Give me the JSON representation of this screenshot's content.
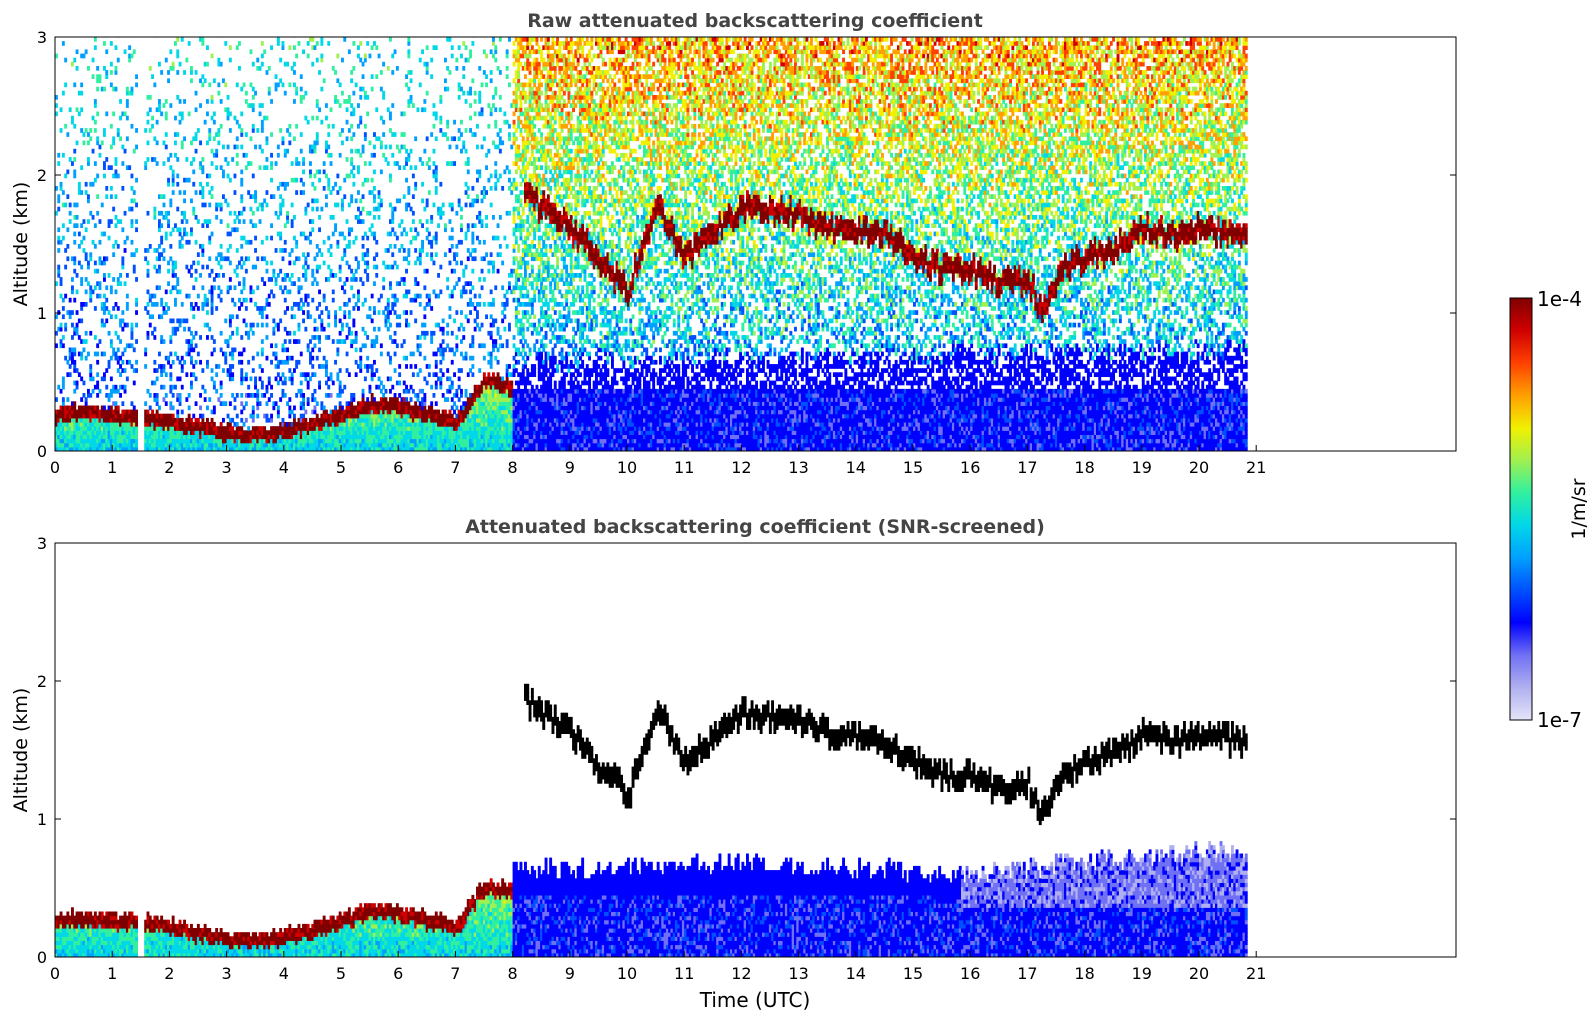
{
  "chart_data": {
    "type": "heatmap",
    "shared_x_label": "Time (UTC)",
    "x_ticks": [
      0,
      1,
      2,
      3,
      4,
      5,
      6,
      7,
      8,
      9,
      10,
      11,
      12,
      13,
      14,
      15,
      16,
      17,
      18,
      19,
      20,
      21
    ],
    "x_range": [
      0,
      24
    ],
    "data_x_extent": [
      0,
      20.8
    ],
    "y_range": [
      0,
      3
    ],
    "y_ticks": [
      0,
      1,
      2,
      3
    ],
    "colorbar": {
      "label": "1/m/sr",
      "min_label": "1e-7",
      "max_label": "1e-4",
      "scale": "log",
      "colors": [
        "#e4e4f8",
        "#b0b0f0",
        "#7070f4",
        "#0000ff",
        "#0050ff",
        "#00a0ff",
        "#00d8e8",
        "#30f0a0",
        "#a0f050",
        "#f0f000",
        "#ffa000",
        "#ff4000",
        "#d00000",
        "#800000"
      ]
    },
    "panels": [
      {
        "title": "Raw attenuated backscattering coefficient",
        "ylabel": "Altitude (km)",
        "xlabel": "",
        "screened": false,
        "features": {
          "data_gap": [
            1.42,
            1.55
          ],
          "boundary_layer_top_km": [
            [
              0,
              0.25
            ],
            [
              0.5,
              0.26
            ],
            [
              1.0,
              0.24
            ],
            [
              1.4,
              0.24
            ],
            [
              1.6,
              0.23
            ],
            [
              2.0,
              0.2
            ],
            [
              2.5,
              0.16
            ],
            [
              3.0,
              0.12
            ],
            [
              3.5,
              0.1
            ],
            [
              4.0,
              0.13
            ],
            [
              4.5,
              0.18
            ],
            [
              5.0,
              0.25
            ],
            [
              5.5,
              0.32
            ],
            [
              6.0,
              0.31
            ],
            [
              6.5,
              0.25
            ],
            [
              7.0,
              0.2
            ],
            [
              7.5,
              0.5
            ],
            [
              8.0,
              0.45
            ]
          ],
          "cloud_layer_km": [
            [
              8.2,
              1.85
            ],
            [
              9.0,
              1.6
            ],
            [
              10.0,
              1.15
            ],
            [
              10.5,
              1.8
            ],
            [
              11.0,
              1.4
            ],
            [
              12.0,
              1.75
            ],
            [
              13.0,
              1.7
            ],
            [
              13.5,
              1.6
            ],
            [
              14.0,
              1.6
            ],
            [
              14.5,
              1.55
            ],
            [
              15.0,
              1.4
            ],
            [
              15.5,
              1.3
            ],
            [
              16.0,
              1.3
            ],
            [
              16.5,
              1.2
            ],
            [
              17.0,
              1.25
            ],
            [
              17.2,
              1.0
            ],
            [
              17.6,
              1.3
            ],
            [
              18.0,
              1.4
            ],
            [
              18.5,
              1.45
            ],
            [
              19.0,
              1.6
            ],
            [
              19.5,
              1.55
            ],
            [
              20.0,
              1.6
            ],
            [
              20.8,
              1.55
            ]
          ]
        }
      },
      {
        "title": "Attenuated backscattering coefficient (SNR-screened)",
        "ylabel": "Altitude (km)",
        "xlabel": "Time (UTC)",
        "screened": true,
        "features": {
          "data_gap": [
            1.42,
            1.55
          ],
          "aerosol_top_km": [
            [
              8.0,
              0.6
            ],
            [
              10.0,
              0.6
            ],
            [
              12.0,
              0.65
            ],
            [
              14.0,
              0.6
            ],
            [
              16.0,
              0.55
            ],
            [
              18.0,
              0.65
            ],
            [
              20.8,
              0.75
            ]
          ]
        }
      }
    ]
  }
}
